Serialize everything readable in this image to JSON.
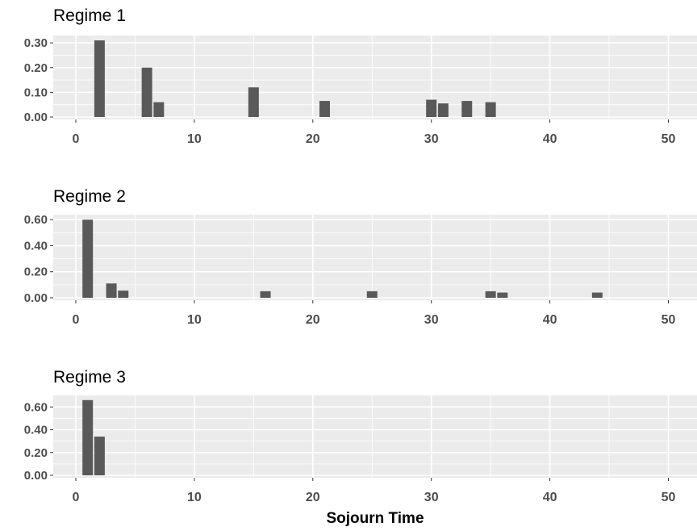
{
  "chart_data": [
    {
      "type": "bar",
      "title": "Regime 1",
      "xlim": [
        0,
        52
      ],
      "ylim": [
        0,
        0.32
      ],
      "x_ticks": [
        "0",
        "10",
        "20",
        "30",
        "40",
        "50"
      ],
      "y_ticks": [
        "0.00",
        "0.10",
        "0.20",
        "0.30"
      ],
      "x": [
        2,
        6,
        7,
        15,
        21,
        30,
        31,
        33,
        35
      ],
      "values": [
        0.31,
        0.2,
        0.06,
        0.12,
        0.065,
        0.07,
        0.055,
        0.065,
        0.06
      ],
      "grid": true
    },
    {
      "type": "bar",
      "title": "Regime 2",
      "xlim": [
        0,
        52
      ],
      "ylim": [
        0,
        0.62
      ],
      "x_ticks": [
        "0",
        "10",
        "20",
        "30",
        "40",
        "50"
      ],
      "y_ticks": [
        "0.00",
        "0.20",
        "0.40",
        "0.60"
      ],
      "x": [
        1,
        3,
        4,
        16,
        25,
        35,
        36,
        44
      ],
      "values": [
        0.6,
        0.11,
        0.055,
        0.05,
        0.05,
        0.05,
        0.04,
        0.04
      ],
      "grid": true
    },
    {
      "type": "bar",
      "title": "Regime 3",
      "xlim": [
        0,
        52
      ],
      "ylim": [
        0,
        0.68
      ],
      "x_ticks": [
        "0",
        "10",
        "20",
        "30",
        "40",
        "50"
      ],
      "y_ticks": [
        "0.00",
        "0.20",
        "0.40",
        "0.60"
      ],
      "x": [
        1,
        2
      ],
      "values": [
        0.66,
        0.34
      ],
      "grid": true,
      "xlabel": "Sojourn Time"
    }
  ],
  "colors": {
    "panel_background": "#ebebeb",
    "grid": "#ffffff",
    "bar": "#595959"
  }
}
